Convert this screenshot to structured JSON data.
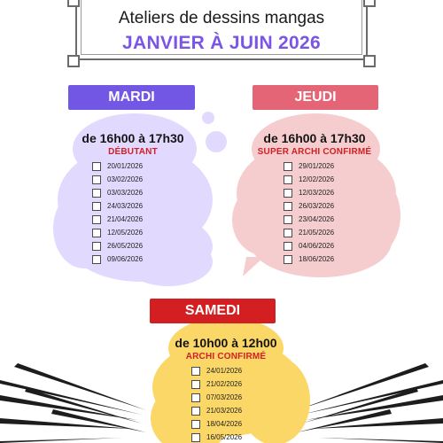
{
  "header": {
    "title": "Ateliers de dessins mangas",
    "subtitle": "JANVIER À JUIN 2026",
    "subtitle_color": "#7a55e6"
  },
  "sessions": [
    {
      "day": "MARDI",
      "color": "#7257e4",
      "cloud_color": "#e2d9ff",
      "time": "de 16h00 à 17h30",
      "level": "DÉBUTANT",
      "dates": [
        "20/01/2026",
        "03/02/2026",
        "03/03/2026",
        "24/03/2026",
        "21/04/2026",
        "12/05/2026",
        "26/05/2026",
        "09/06/2026"
      ]
    },
    {
      "day": "JEUDI",
      "color": "#e46575",
      "cloud_color": "#f6cdce",
      "time": "de 16h00 à 17h30",
      "level": "SUPER ARCHI CONFIRMÉ",
      "dates": [
        "29/01/2026",
        "12/02/2026",
        "12/03/2026",
        "26/03/2026",
        "23/04/2026",
        "21/05/2026",
        "04/06/2026",
        "18/06/2026"
      ]
    },
    {
      "day": "SAMEDI",
      "color": "#d31f22",
      "cloud_color": "#fbd768",
      "time": "de 10h00 à 12h00",
      "level": "ARCHI CONFIRMÉ",
      "dates": [
        "24/01/2026",
        "21/02/2026",
        "07/03/2026",
        "21/03/2026",
        "18/04/2026",
        "16/05/2026"
      ]
    }
  ],
  "icons": {
    "date_checkbox": "checkbox-icon",
    "speech_bubble": "thought-bubble-icon",
    "speed_lines": "manga-speed-lines-icon"
  }
}
